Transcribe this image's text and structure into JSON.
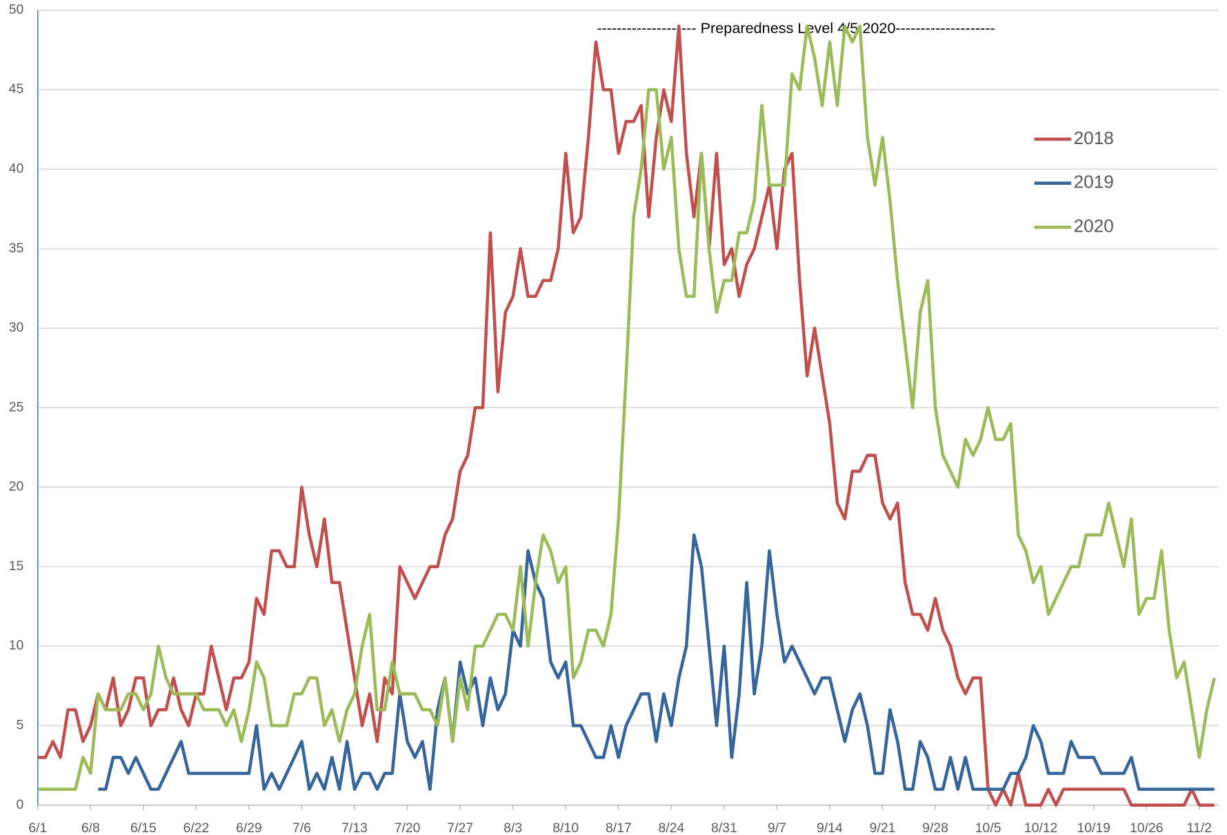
{
  "chart_data": {
    "type": "line",
    "annotation": "--------------------  Preparedness Level 4/5 2020--------------------",
    "categories": [
      "6/1",
      null,
      null,
      null,
      null,
      null,
      null,
      "6/8",
      null,
      null,
      null,
      null,
      null,
      null,
      "6/15",
      null,
      null,
      null,
      null,
      null,
      null,
      "6/22",
      null,
      null,
      null,
      null,
      null,
      null,
      "6/29",
      null,
      null,
      null,
      null,
      null,
      null,
      "7/6",
      null,
      null,
      null,
      null,
      null,
      null,
      "7/13",
      null,
      null,
      null,
      null,
      null,
      null,
      "7/20",
      null,
      null,
      null,
      null,
      null,
      null,
      "7/27",
      null,
      null,
      null,
      null,
      null,
      null,
      "8/3",
      null,
      null,
      null,
      null,
      null,
      null,
      "8/10",
      null,
      null,
      null,
      null,
      null,
      null,
      "8/17",
      null,
      null,
      null,
      null,
      null,
      null,
      "8/24",
      null,
      null,
      null,
      null,
      null,
      null,
      "8/31",
      null,
      null,
      null,
      null,
      null,
      null,
      "9/7",
      null,
      null,
      null,
      null,
      null,
      null,
      "9/14",
      null,
      null,
      null,
      null,
      null,
      null,
      "9/21",
      null,
      null,
      null,
      null,
      null,
      null,
      "9/28",
      null,
      null,
      null,
      null,
      null,
      null,
      "10/5",
      null,
      null,
      null,
      null,
      null,
      null,
      "10/12",
      null,
      null,
      null,
      null,
      null,
      null,
      "10/19",
      null,
      null,
      null,
      null,
      null,
      null,
      "10/26",
      null,
      null,
      null,
      null,
      null,
      null,
      "11/2",
      null,
      null
    ],
    "series": [
      {
        "name": "2018",
        "color": "#c0504d",
        "values": [
          3,
          3,
          4,
          3,
          6,
          6,
          4,
          5,
          7,
          6,
          8,
          5,
          6,
          8,
          8,
          5,
          6,
          6,
          8,
          6,
          5,
          7,
          7,
          10,
          8,
          6,
          8,
          8,
          9,
          13,
          12,
          16,
          16,
          15,
          15,
          20,
          17,
          15,
          18,
          14,
          14,
          11,
          8,
          5,
          7,
          4,
          8,
          7,
          15,
          14,
          13,
          14,
          15,
          15,
          17,
          18,
          21,
          22,
          25,
          25,
          36,
          26,
          31,
          32,
          35,
          32,
          32,
          33,
          33,
          35,
          41,
          36,
          37,
          42,
          48,
          45,
          45,
          41,
          43,
          43,
          44,
          37,
          42,
          45,
          43,
          49,
          41,
          37,
          41,
          35,
          41,
          34,
          35,
          32,
          34,
          35,
          37,
          39,
          35,
          40,
          41,
          33,
          27,
          30,
          27,
          24,
          19,
          18,
          21,
          21,
          22,
          22,
          19,
          18,
          19,
          14,
          12,
          12,
          11,
          13,
          11,
          10,
          8,
          7,
          8,
          8,
          1,
          0,
          1,
          0,
          2,
          0,
          0,
          0,
          1,
          0,
          1,
          1,
          1,
          1,
          1,
          1,
          1,
          1,
          1,
          0,
          0,
          0,
          0,
          0,
          0,
          0,
          0,
          1,
          0,
          0,
          0
        ]
      },
      {
        "name": "2019",
        "color": "#35659a",
        "values": [
          null,
          null,
          null,
          null,
          null,
          null,
          null,
          null,
          1,
          1,
          3,
          3,
          2,
          3,
          2,
          1,
          1,
          2,
          3,
          4,
          2,
          2,
          2,
          2,
          2,
          2,
          2,
          2,
          2,
          5,
          1,
          2,
          1,
          2,
          3,
          4,
          1,
          2,
          1,
          3,
          1,
          4,
          1,
          2,
          2,
          1,
          2,
          2,
          7,
          4,
          3,
          4,
          1,
          6,
          8,
          4,
          9,
          7,
          8,
          5,
          8,
          6,
          7,
          11,
          10,
          16,
          14,
          13,
          9,
          8,
          9,
          5,
          5,
          4,
          3,
          3,
          5,
          3,
          5,
          6,
          7,
          7,
          4,
          7,
          5,
          8,
          10,
          17,
          15,
          10,
          5,
          10,
          3,
          7,
          14,
          7,
          10,
          16,
          12,
          9,
          10,
          9,
          8,
          7,
          8,
          8,
          6,
          4,
          6,
          7,
          5,
          2,
          2,
          6,
          4,
          1,
          1,
          4,
          3,
          1,
          1,
          3,
          1,
          3,
          1,
          1,
          1,
          1,
          1,
          2,
          2,
          3,
          5,
          4,
          2,
          2,
          2,
          4,
          3,
          3,
          3,
          2,
          2,
          2,
          2,
          3,
          1,
          1,
          1,
          1,
          1,
          1,
          1,
          1,
          1,
          1,
          1
        ]
      },
      {
        "name": "2020",
        "color": "#9bbb59",
        "values": [
          1,
          1,
          1,
          1,
          1,
          1,
          3,
          2,
          7,
          6,
          6,
          6,
          7,
          7,
          6,
          7,
          10,
          8,
          7,
          7,
          7,
          7,
          6,
          6,
          6,
          5,
          6,
          4,
          6,
          9,
          8,
          5,
          5,
          5,
          7,
          7,
          8,
          8,
          5,
          6,
          4,
          6,
          7,
          10,
          12,
          6,
          6,
          9,
          7,
          7,
          7,
          6,
          6,
          5,
          8,
          4,
          8,
          6,
          10,
          10,
          11,
          12,
          12,
          11,
          15,
          10,
          14,
          17,
          16,
          14,
          15,
          8,
          9,
          11,
          11,
          10,
          12,
          18,
          27,
          37,
          40,
          45,
          45,
          40,
          42,
          35,
          32,
          32,
          41,
          35,
          31,
          33,
          33,
          36,
          36,
          38,
          44,
          39,
          39,
          39,
          46,
          45,
          49,
          47,
          44,
          48,
          44,
          49,
          48,
          49,
          42,
          39,
          42,
          38,
          33,
          29,
          25,
          31,
          33,
          25,
          22,
          21,
          20,
          23,
          22,
          23,
          25,
          23,
          23,
          24,
          17,
          16,
          14,
          15,
          12,
          13,
          14,
          15,
          15,
          17,
          17,
          17,
          19,
          17,
          15,
          18,
          12,
          13,
          13,
          16,
          11,
          8,
          9,
          6,
          3,
          6,
          8
        ]
      }
    ],
    "ylim": [
      0,
      50
    ],
    "yticks": [
      0,
      5,
      10,
      15,
      20,
      25,
      30,
      35,
      40,
      45,
      50
    ],
    "grid": true,
    "legend": "right"
  }
}
